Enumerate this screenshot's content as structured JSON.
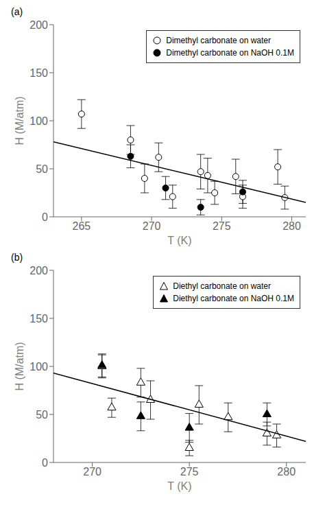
{
  "chart_data": [
    {
      "type": "scatter",
      "title": "(a)",
      "x_label": "T (K)",
      "y_label": "H (M/atm)",
      "xlim": [
        263,
        281
      ],
      "ylim": [
        0,
        200
      ],
      "xticks": [
        265,
        270,
        275,
        280
      ],
      "yticks": [
        0,
        50,
        100,
        150,
        200
      ],
      "grid": false,
      "legend": "upper right",
      "series": [
        {
          "name": "Dimethyl carbonate on water",
          "color": "white",
          "marker": "circle",
          "x": [
            265.0,
            268.5,
            269.5,
            270.5,
            271.5,
            273.5,
            274.0,
            274.5,
            276.0,
            276.5,
            279.0,
            279.5
          ],
          "values": [
            107,
            80,
            40,
            62,
            21,
            47,
            43,
            25,
            42,
            21,
            52,
            20
          ],
          "errors": [
            15,
            15,
            15,
            15,
            12,
            18,
            18,
            12,
            18,
            12,
            18,
            12
          ]
        },
        {
          "name": "Dimethyl carbonate on NaOH 0.1M",
          "color": "black",
          "marker": "circle",
          "x": [
            268.5,
            271.0,
            273.5,
            276.5
          ],
          "values": [
            63,
            30,
            10,
            26
          ],
          "errors": [
            12,
            12,
            8,
            12
          ]
        },
        {
          "type": "line",
          "color": "black",
          "line_style": "solid",
          "x": [
            263,
            281
          ],
          "values": [
            78,
            15
          ]
        }
      ]
    },
    {
      "type": "scatter",
      "title": "(b)",
      "x_label": "T (K)",
      "y_label": "H (M/atm)",
      "xlim": [
        268,
        281
      ],
      "ylim": [
        0,
        200
      ],
      "xticks": [
        270,
        275,
        280
      ],
      "yticks": [
        0,
        50,
        100,
        150,
        200
      ],
      "grid": false,
      "legend": "upper right",
      "series": [
        {
          "name": "Diethyl carbonate on water",
          "color": "white",
          "marker": "triangle",
          "x": [
            270.5,
            271.0,
            272.5,
            273.0,
            275.0,
            275.5,
            277.0,
            279.0,
            279.5
          ],
          "values": [
            100,
            57,
            83,
            65,
            15,
            60,
            47,
            30,
            28
          ],
          "errors": [
            12,
            10,
            15,
            20,
            8,
            20,
            15,
            12,
            12
          ]
        },
        {
          "name": "Diethyl carbonate on NaOH 0.1M",
          "color": "black",
          "marker": "triangle",
          "x": [
            270.5,
            272.5,
            275.0,
            279.0
          ],
          "values": [
            101,
            48,
            36,
            50
          ],
          "errors": [
            12,
            15,
            15,
            12
          ]
        },
        {
          "type": "line",
          "color": "black",
          "line_style": "solid",
          "x": [
            268,
            281
          ],
          "values": [
            93,
            22
          ]
        }
      ]
    }
  ]
}
